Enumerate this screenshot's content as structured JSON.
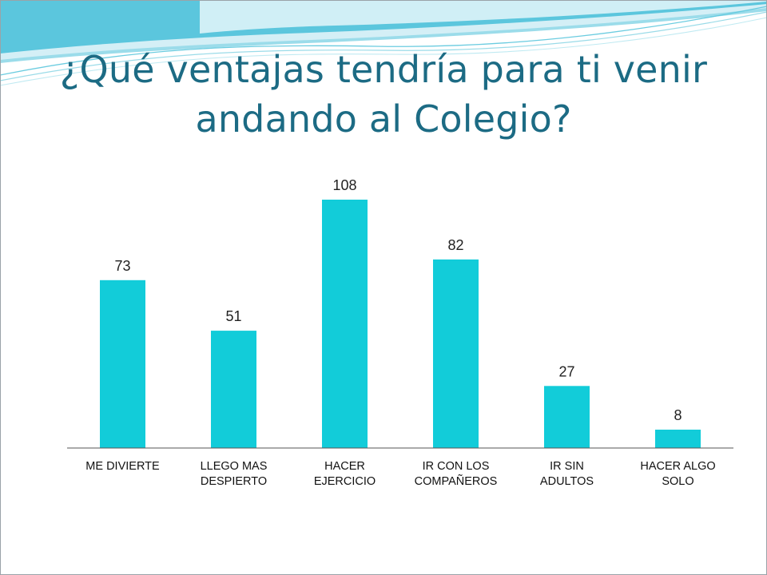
{
  "slide": {
    "title": "¿Qué ventajas tendría para ti venir andando al Colegio?",
    "title_color": "#1c6b84",
    "border_color": "#9aa3a8",
    "decoration_colors": [
      "#5bc6dd",
      "#9bdcea",
      "#d4eff6",
      "#ffffff"
    ]
  },
  "chart_data": {
    "type": "bar",
    "title": "",
    "xlabel": "",
    "ylabel": "",
    "categories": [
      "ME DIVIERTE",
      "LLEGO MAS DESPIERTO",
      "HACER EJERCICIO",
      "IR CON LOS COMPAÑEROS",
      "IR SIN ADULTOS",
      "HACER ALGO SOLO"
    ],
    "category_lines": [
      [
        "ME DIVIERTE"
      ],
      [
        "LLEGO MAS",
        "DESPIERTO"
      ],
      [
        "HACER",
        "EJERCICIO"
      ],
      [
        "IR CON LOS",
        "COMPAÑEROS"
      ],
      [
        "IR SIN",
        "ADULTOS"
      ],
      [
        "HACER ALGO",
        "SOLO"
      ]
    ],
    "values": [
      73,
      51,
      108,
      82,
      27,
      8
    ],
    "value_labels": [
      "73",
      "51",
      "108",
      "82",
      "27",
      "8"
    ],
    "ylim": [
      0,
      108
    ],
    "bar_color": "#12ccd9",
    "grid": false,
    "legend": "none",
    "data_labels": true
  }
}
